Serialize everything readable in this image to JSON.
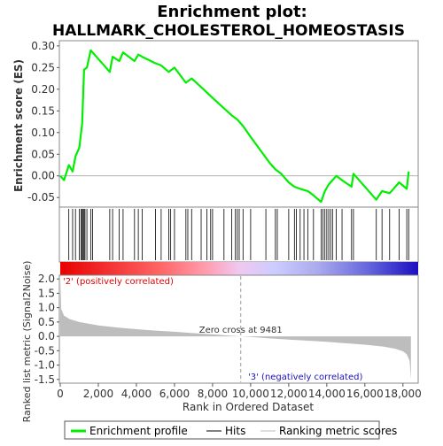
{
  "chart_data": {
    "type": "line",
    "title_line1": "Enrichment plot:",
    "title_line2": "HALLMARK_CHOLESTEROL_HOMEOSTASIS",
    "es_panel": {
      "ylabel": "Enrichment score (ES)",
      "ylim": [
        -0.07,
        0.31
      ],
      "yticks": [
        "-0.05",
        "0.00",
        "0.05",
        "0.10",
        "0.15",
        "0.20",
        "0.25",
        "0.30"
      ],
      "ytick_values": [
        -0.05,
        0.0,
        0.05,
        0.1,
        0.15,
        0.2,
        0.25,
        0.3
      ],
      "line_color": "#00ee00",
      "series": [
        {
          "x": [
            0,
            200,
            450,
            650,
            800,
            1000,
            1150,
            1250,
            1400,
            1600,
            2600,
            2750,
            3100,
            3300,
            3900,
            4100,
            4300,
            5000,
            5300,
            5700,
            6000,
            6600,
            6900,
            7400,
            8000,
            9000,
            9300,
            9600,
            10000,
            10500,
            11000,
            11300,
            11600,
            12000,
            12300,
            12600,
            13000,
            13300,
            13700,
            13900,
            14100,
            14300,
            14500,
            14800,
            15300,
            15400,
            16600,
            16900,
            17300,
            17800,
            18200,
            18300
          ],
          "y": [
            0.0,
            -0.01,
            0.025,
            0.01,
            0.045,
            0.065,
            0.12,
            0.245,
            0.25,
            0.29,
            0.24,
            0.275,
            0.265,
            0.285,
            0.265,
            0.28,
            0.275,
            0.26,
            0.255,
            0.24,
            0.25,
            0.215,
            0.225,
            0.205,
            0.18,
            0.14,
            0.13,
            0.115,
            0.09,
            0.06,
            0.03,
            0.015,
            0.005,
            -0.015,
            -0.025,
            -0.03,
            -0.035,
            -0.045,
            -0.06,
            -0.035,
            -0.02,
            -0.01,
            0.0,
            -0.01,
            -0.025,
            0.005,
            -0.055,
            -0.035,
            -0.04,
            -0.015,
            -0.03,
            0.01
          ]
        }
      ]
    },
    "hits": [
      450,
      650,
      800,
      1000,
      1100,
      1150,
      1200,
      1250,
      1300,
      1400,
      1600,
      1700,
      2600,
      2750,
      3100,
      3300,
      3900,
      4100,
      4300,
      5000,
      5300,
      5700,
      5800,
      6000,
      6600,
      6700,
      6900,
      7400,
      7700,
      7900,
      8000,
      8600,
      9000,
      9200,
      9300,
      9400,
      9600,
      10000,
      10800,
      11300,
      11400,
      12000,
      12300,
      12400,
      12600,
      12800,
      13000,
      13300,
      13700,
      13800,
      13900,
      14000,
      14100,
      14200,
      14300,
      14500,
      14800,
      15300,
      15400,
      16600,
      16900,
      17300,
      17800,
      18200,
      18300
    ],
    "rank_panel": {
      "ylabel": "Ranked list metric (Signal2Noise)",
      "ylim": [
        -1.6,
        2.1
      ],
      "yticks": [
        "2.0",
        "1.5",
        "1.0",
        "0.5",
        "0.0",
        "-0.5",
        "-1.0",
        "-1.5"
      ],
      "ytick_values": [
        2.0,
        1.5,
        1.0,
        0.5,
        0.0,
        -0.5,
        -1.0,
        -1.5
      ],
      "xlabel": "Rank in Ordered Dataset",
      "xlim": [
        0,
        18800
      ],
      "xticks": [
        "0",
        "2,000",
        "4,000",
        "6,000",
        "8,000",
        "10,000",
        "12,000",
        "14,000",
        "16,000",
        "18,000"
      ],
      "xtick_values": [
        0,
        2000,
        4000,
        6000,
        8000,
        10000,
        12000,
        14000,
        16000,
        18000
      ],
      "metric_profile": {
        "x": [
          0,
          50,
          200,
          500,
          1000,
          2000,
          3000,
          4000,
          5000,
          6000,
          7000,
          8000,
          9000,
          9481,
          10000,
          11000,
          12000,
          13000,
          14000,
          15000,
          16000,
          17000,
          17600,
          18000,
          18200,
          18350,
          18420
        ],
        "y": [
          2.05,
          0.95,
          0.72,
          0.6,
          0.5,
          0.38,
          0.31,
          0.25,
          0.2,
          0.16,
          0.11,
          0.07,
          0.02,
          0.0,
          -0.02,
          -0.07,
          -0.11,
          -0.15,
          -0.19,
          -0.24,
          -0.29,
          -0.36,
          -0.43,
          -0.52,
          -0.62,
          -0.85,
          -1.5
        ]
      },
      "zero_cross_label": "Zero cross at 9481",
      "zero_cross": 9481,
      "pos_label": "'2' (positively correlated)",
      "neg_label": "'3' (negatively correlated)"
    },
    "legend": [
      {
        "label": "Enrichment profile",
        "color": "#00ee00"
      },
      {
        "label": "Hits",
        "color": "#000000"
      },
      {
        "label": "Ranking metric scores",
        "color": "#bbbbbb"
      }
    ]
  }
}
